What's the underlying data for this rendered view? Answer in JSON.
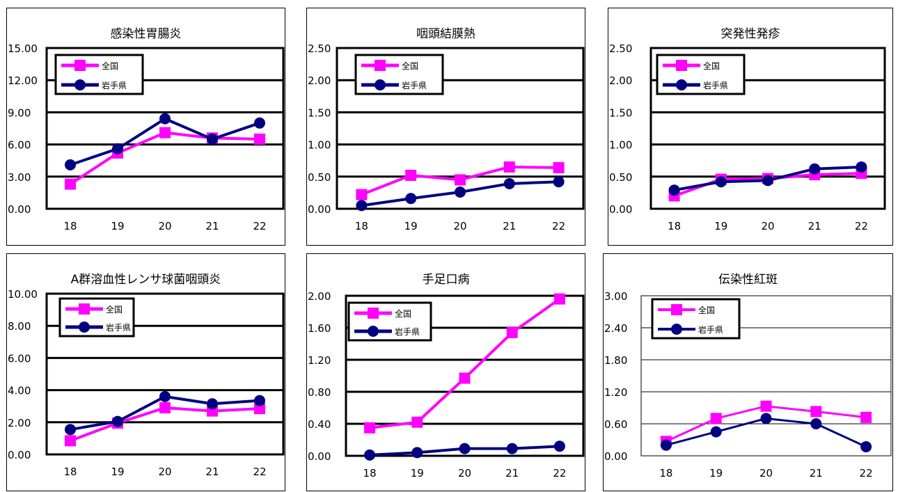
{
  "chart_data": [
    {
      "type": "line",
      "title": "感染性胃腸炎",
      "categories": [
        "18",
        "19",
        "20",
        "21",
        "22"
      ],
      "ylim": [
        0,
        15
      ],
      "yticks": [
        "0.00",
        "3.00",
        "6.00",
        "9.00",
        "12.00",
        "15.00"
      ],
      "grid": true,
      "legend_position": "top-left",
      "series": [
        {
          "name": "全国",
          "values": [
            2.3,
            5.2,
            7.1,
            6.6,
            6.5
          ],
          "color": "#ff00ff",
          "marker": "square"
        },
        {
          "name": "岩手県",
          "values": [
            4.1,
            5.6,
            8.4,
            6.5,
            8.0
          ],
          "color": "#000080",
          "marker": "circle"
        }
      ]
    },
    {
      "type": "line",
      "title": "咽頭結膜熱",
      "categories": [
        "18",
        "19",
        "20",
        "21",
        "22"
      ],
      "ylim": [
        0,
        2.5
      ],
      "yticks": [
        "0.00",
        "0.50",
        "1.00",
        "1.50",
        "2.00",
        "2.50"
      ],
      "grid": true,
      "legend_position": "top-left",
      "series": [
        {
          "name": "全国",
          "values": [
            0.22,
            0.52,
            0.45,
            0.65,
            0.64
          ],
          "color": "#ff00ff",
          "marker": "square"
        },
        {
          "name": "岩手県",
          "values": [
            0.05,
            0.16,
            0.26,
            0.39,
            0.42
          ],
          "color": "#000080",
          "marker": "circle"
        }
      ]
    },
    {
      "type": "line",
      "title": "突発性発疹",
      "categories": [
        "18",
        "19",
        "20",
        "21",
        "22"
      ],
      "ylim": [
        0,
        2.5
      ],
      "yticks": [
        "0.00",
        "0.50",
        "1.00",
        "1.50",
        "2.00",
        "2.50"
      ],
      "grid": true,
      "legend_position": "top-left",
      "series": [
        {
          "name": "全国",
          "values": [
            0.2,
            0.46,
            0.47,
            0.53,
            0.55
          ],
          "color": "#ff00ff",
          "marker": "square"
        },
        {
          "name": "岩手県",
          "values": [
            0.29,
            0.42,
            0.44,
            0.62,
            0.65
          ],
          "color": "#000080",
          "marker": "circle"
        }
      ]
    },
    {
      "type": "line",
      "title": "A群溶血性レンサ球菌咽頭炎",
      "categories": [
        "18",
        "19",
        "20",
        "21",
        "22"
      ],
      "ylim": [
        0,
        10
      ],
      "yticks": [
        "0.00",
        "2.00",
        "4.00",
        "6.00",
        "8.00",
        "10.00"
      ],
      "grid": true,
      "legend_position": "top-left",
      "series": [
        {
          "name": "全国",
          "values": [
            0.85,
            1.95,
            2.9,
            2.7,
            2.85
          ],
          "color": "#ff00ff",
          "marker": "square"
        },
        {
          "name": "岩手県",
          "values": [
            1.55,
            2.05,
            3.6,
            3.15,
            3.35
          ],
          "color": "#000080",
          "marker": "circle"
        }
      ]
    },
    {
      "type": "line",
      "title": "手足口病",
      "categories": [
        "18",
        "19",
        "20",
        "21",
        "22"
      ],
      "ylim": [
        0,
        2
      ],
      "yticks": [
        "0.00",
        "0.40",
        "0.80",
        "1.20",
        "1.60",
        "2.00"
      ],
      "grid": true,
      "legend_position": "top-left",
      "series": [
        {
          "name": "全国",
          "values": [
            0.35,
            0.42,
            0.97,
            1.54,
            1.96
          ],
          "color": "#ff00ff",
          "marker": "square"
        },
        {
          "name": "岩手県",
          "values": [
            0.01,
            0.04,
            0.09,
            0.09,
            0.12
          ],
          "color": "#000080",
          "marker": "circle"
        }
      ]
    },
    {
      "type": "line",
      "title": "伝染性紅斑",
      "categories": [
        "18",
        "19",
        "20",
        "21",
        "22"
      ],
      "ylim": [
        0,
        3
      ],
      "yticks": [
        "0.00",
        "0.60",
        "1.20",
        "1.80",
        "2.40",
        "3.00"
      ],
      "grid": true,
      "legend_position": "top-left",
      "series": [
        {
          "name": "全国",
          "values": [
            0.27,
            0.7,
            0.93,
            0.83,
            0.72
          ],
          "color": "#ff00ff",
          "marker": "square"
        },
        {
          "name": "岩手県",
          "values": [
            0.2,
            0.45,
            0.7,
            0.6,
            0.17
          ],
          "color": "#000080",
          "marker": "circle"
        }
      ]
    }
  ]
}
